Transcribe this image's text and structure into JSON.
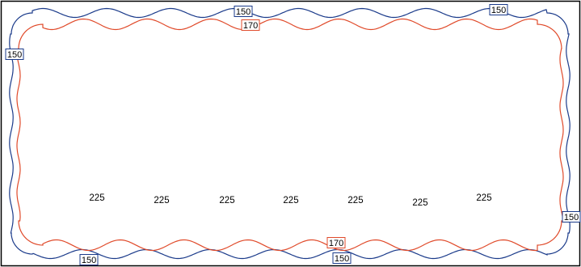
{
  "diagram": {
    "colors": {
      "frame": "#000000",
      "outer_curve": "#1a3a8a",
      "inner_curve": "#e04a2a",
      "tag_outer_border": "#1a3a8a",
      "tag_inner_border": "#e04a2a",
      "text": "#000000"
    },
    "outer_tags": [
      "150",
      "150",
      "150",
      "150",
      "150",
      "150"
    ],
    "inner_tags": [
      "170",
      "170"
    ],
    "row_values": [
      "225",
      "225",
      "225",
      "225",
      "225",
      "225",
      "225"
    ]
  }
}
